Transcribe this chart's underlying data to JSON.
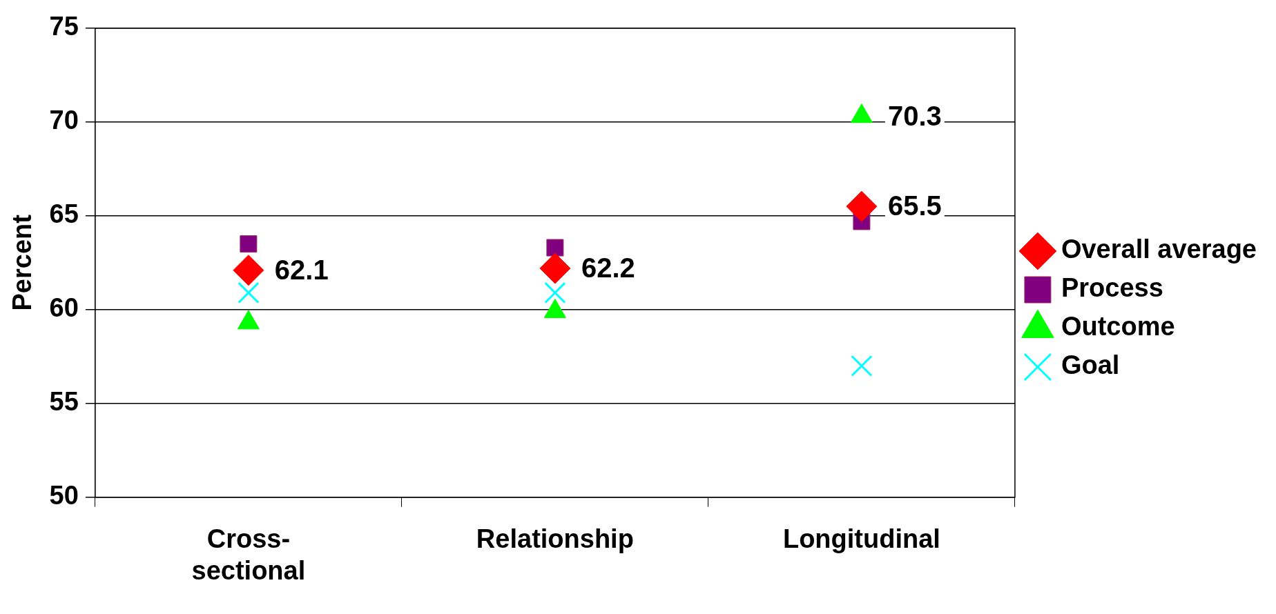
{
  "chart_data": {
    "type": "scatter",
    "ylabel": "Percent",
    "categories": [
      "Cross-sectional",
      "Relationship",
      "Longitudinal"
    ],
    "series": [
      {
        "name": "Overall average",
        "color": "#ff0000",
        "marker": "diamond",
        "values": [
          62.1,
          62.2,
          65.5
        ],
        "value_labels": [
          "62.1",
          "62.2",
          "65.5"
        ]
      },
      {
        "name": "Process",
        "color": "#800080",
        "marker": "square",
        "values": [
          63.5,
          63.3,
          64.7
        ]
      },
      {
        "name": "Outcome",
        "color": "#00ff00",
        "marker": "triangle",
        "values": [
          59.3,
          59.9,
          70.3
        ],
        "value_labels": [
          null,
          null,
          "70.3"
        ]
      },
      {
        "name": "Goal",
        "color": "#00ffff",
        "marker": "cross",
        "values": [
          60.9,
          60.9,
          57.0
        ]
      }
    ],
    "ylim": [
      50,
      75
    ],
    "yticks": [
      50,
      55,
      60,
      65,
      70,
      75
    ],
    "grid": "y",
    "legend": "right"
  }
}
